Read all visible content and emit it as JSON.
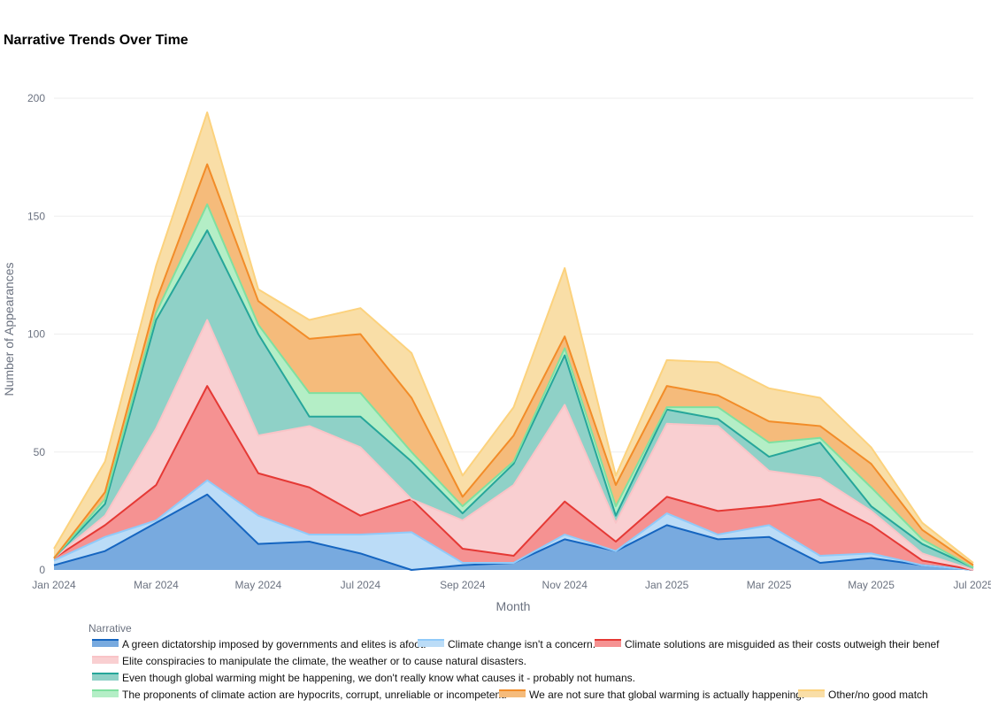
{
  "chart_data": {
    "type": "area",
    "title": "Narrative Trends Over Time",
    "xlabel": "Month",
    "ylabel": "Number of Appearances",
    "ylim": [
      0,
      200
    ],
    "yticks": [
      0,
      50,
      100,
      150,
      200
    ],
    "grid": true,
    "legend_title": "Narrative",
    "legend_position": "bottom",
    "x": [
      "2024-01",
      "2024-02",
      "2024-03",
      "2024-04",
      "2024-05",
      "2024-06",
      "2024-07",
      "2024-08",
      "2024-09",
      "2024-10",
      "2024-11",
      "2024-12",
      "2025-01",
      "2025-02",
      "2025-03",
      "2025-04",
      "2025-05",
      "2025-06",
      "2025-07"
    ],
    "xticks": [
      {
        "value": "2024-01",
        "label": "Jan 2024"
      },
      {
        "value": "2024-03",
        "label": "Mar 2024"
      },
      {
        "value": "2024-05",
        "label": "May 2024"
      },
      {
        "value": "2024-07",
        "label": "Jul 2024"
      },
      {
        "value": "2024-09",
        "label": "Sep 2024"
      },
      {
        "value": "2024-11",
        "label": "Nov 2024"
      },
      {
        "value": "2025-01",
        "label": "Jan 2025"
      },
      {
        "value": "2025-03",
        "label": "Mar 2025"
      },
      {
        "value": "2025-05",
        "label": "May 2025"
      },
      {
        "value": "2025-07",
        "label": "Jul 2025"
      }
    ],
    "series": [
      {
        "name": "A green dictatorship imposed by governments and elites is afoot.",
        "line": "#1565c0",
        "fill": "#78aadf",
        "values": [
          2,
          8,
          20,
          32,
          11,
          12,
          7,
          0,
          2,
          3,
          13,
          8,
          19,
          13,
          14,
          3,
          5,
          2,
          0
        ]
      },
      {
        "name": "Climate change isn't a concern.",
        "line": "#90caf9",
        "fill": "#bbdcf7",
        "values": [
          2,
          6,
          1,
          6,
          12,
          3,
          8,
          16,
          1,
          0,
          2,
          0,
          5,
          2,
          5,
          3,
          2,
          0,
          0
        ]
      },
      {
        "name": "Climate solutions are misguided as their costs outweigh their benef",
        "line": "#e53935",
        "fill": "#f59292",
        "values": [
          1,
          5,
          15,
          40,
          18,
          20,
          8,
          14,
          6,
          3,
          14,
          4,
          7,
          10,
          8,
          24,
          12,
          2,
          0
        ]
      },
      {
        "name": "Elite conspiracies to manipulate the climate, the weather or to cause natural disasters.",
        "line": "#f9c4c7",
        "fill": "#f9cfd1",
        "values": [
          0,
          4,
          24,
          28,
          16,
          26,
          29,
          0,
          12,
          30,
          41,
          8,
          31,
          36,
          15,
          9,
          6,
          3,
          0
        ]
      },
      {
        "name": "Even though global warming might be happening, we don't really know what causes it - probably not humans.",
        "line": "#26a69a",
        "fill": "#8fd1c7",
        "values": [
          0,
          5,
          46,
          38,
          43,
          4,
          13,
          16,
          3,
          9,
          21,
          3,
          6,
          3,
          6,
          15,
          2,
          4,
          1
        ]
      },
      {
        "name": "The proponents of climate action are hypocrits, corrupt, unreliable or incompetent.",
        "line": "#7fe0a0",
        "fill": "#b4eec6",
        "values": [
          0,
          2,
          3,
          11,
          4,
          10,
          10,
          4,
          3,
          1,
          3,
          4,
          1,
          5,
          6,
          2,
          8,
          2,
          0
        ]
      },
      {
        "name": "We are not sure that global warming is actually happening.",
        "line": "#f28c28",
        "fill": "#f5bb7b",
        "values": [
          0,
          3,
          5,
          17,
          10,
          23,
          25,
          23,
          4,
          11,
          5,
          9,
          9,
          5,
          9,
          5,
          10,
          4,
          1
        ]
      },
      {
        "name": "Other/no good match",
        "line": "#fcd27d",
        "fill": "#f9dea7",
        "values": [
          4,
          13,
          15,
          22,
          5,
          8,
          11,
          19,
          9,
          12,
          29,
          4,
          11,
          14,
          14,
          12,
          7,
          3,
          1
        ]
      }
    ]
  }
}
